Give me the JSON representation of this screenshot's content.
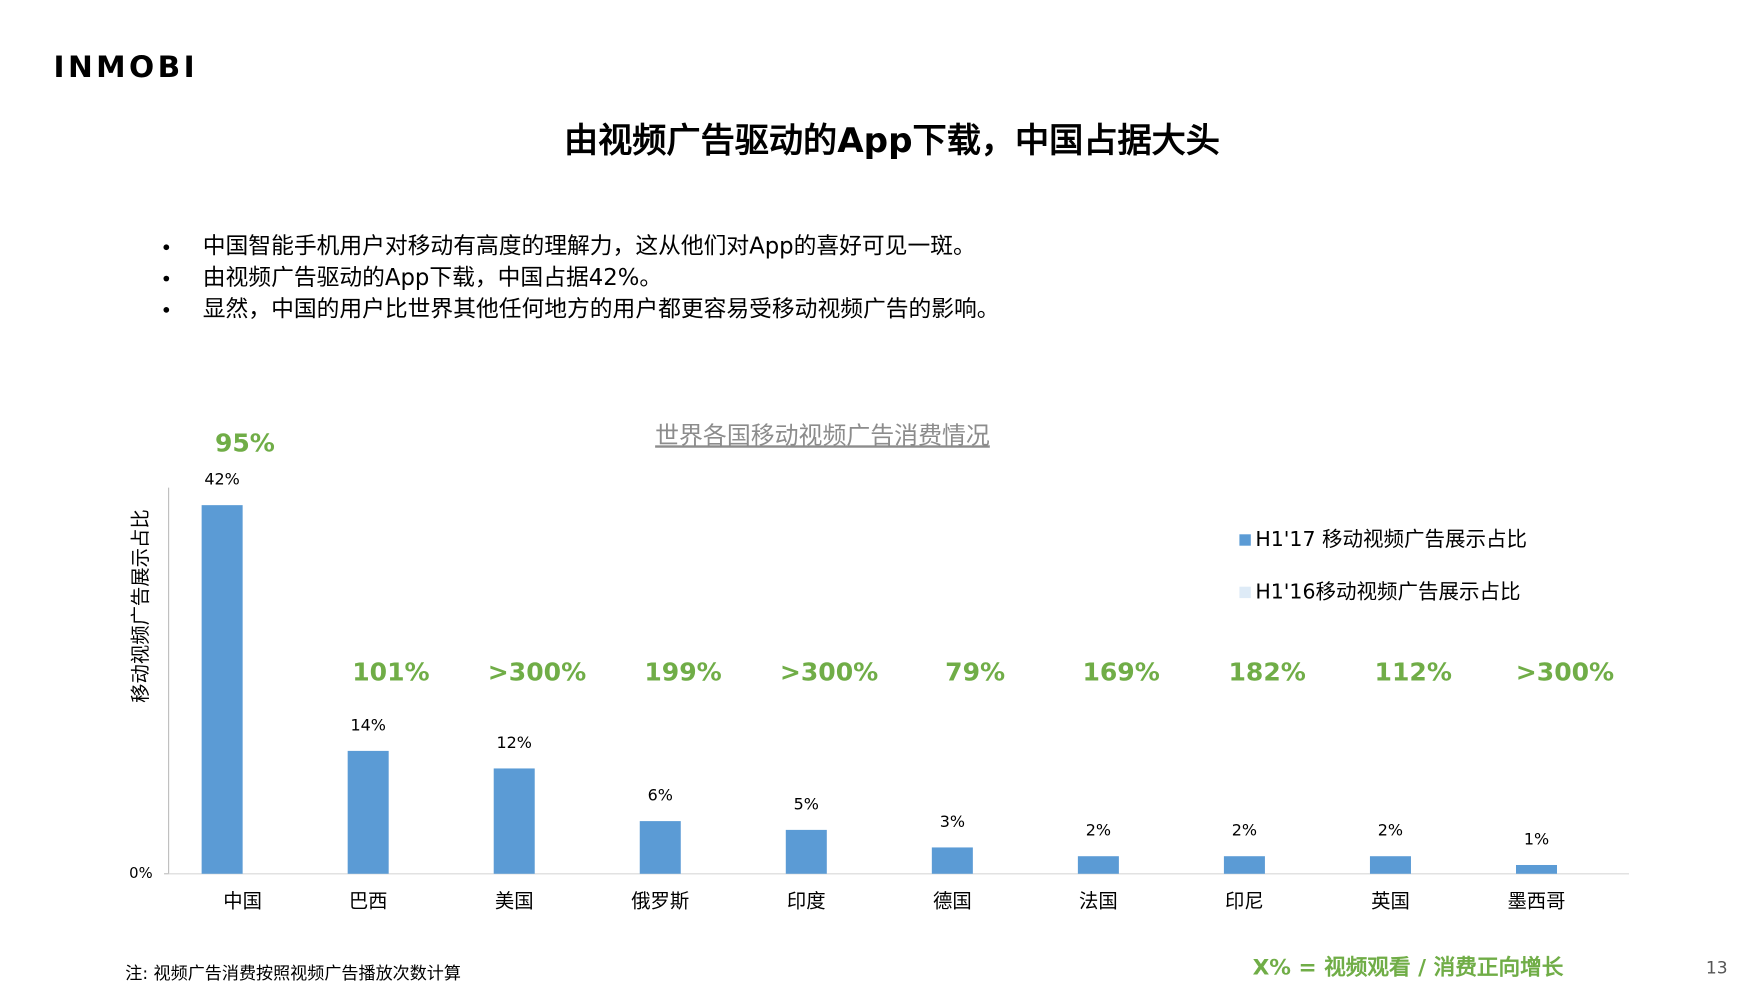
{
  "logo": "INMOBI",
  "title": "由视频广告驱动的App下载，中国占据大头",
  "bullets": [
    "中国智能手机用户对移动有高度的理解力，这从他们对App的喜好可见一斑。",
    "由视频广告驱动的App下载，中国占据42%。",
    "显然，中国的用户比世界其他任何地方的用户都更容易受移动视频广告的影响。"
  ],
  "note": "注: 视频广告消费按照视频广告播放次数计算",
  "growth_legend": "X% = 视频观看 / 消费正向增长",
  "page_number": "13",
  "chart_data": {
    "type": "bar",
    "title": "世界各国移动视频广告消费情况",
    "y_label": "移动视频广告展示占比",
    "categories": [
      "中国",
      "巴西",
      "美国",
      "俄罗斯",
      "印度",
      "德国",
      "法国",
      "印尼",
      "英国",
      "墨西哥"
    ],
    "series": [
      {
        "name": "H1'17 移动视频广告展示占比",
        "color": "#5b9bd5",
        "values": [
          42,
          14,
          12,
          6,
          5,
          3,
          2,
          2,
          2,
          1
        ],
        "value_labels": [
          "42%",
          "14%",
          "12%",
          "6%",
          "5%",
          "3%",
          "2%",
          "2%",
          "2%",
          "1%"
        ]
      },
      {
        "name": "H1'16移动视频广告展示占比",
        "color": "#deebf7"
      }
    ],
    "annotations": [
      "95%",
      "101%",
      ">300%",
      "199%",
      ">300%",
      "79%",
      "169%",
      "182%",
      "112%",
      ">300%"
    ],
    "annotation_color": "#70ad47",
    "ylim": [
      0,
      44
    ],
    "yticks": [
      {
        "value": 0,
        "label": "0%"
      }
    ]
  }
}
